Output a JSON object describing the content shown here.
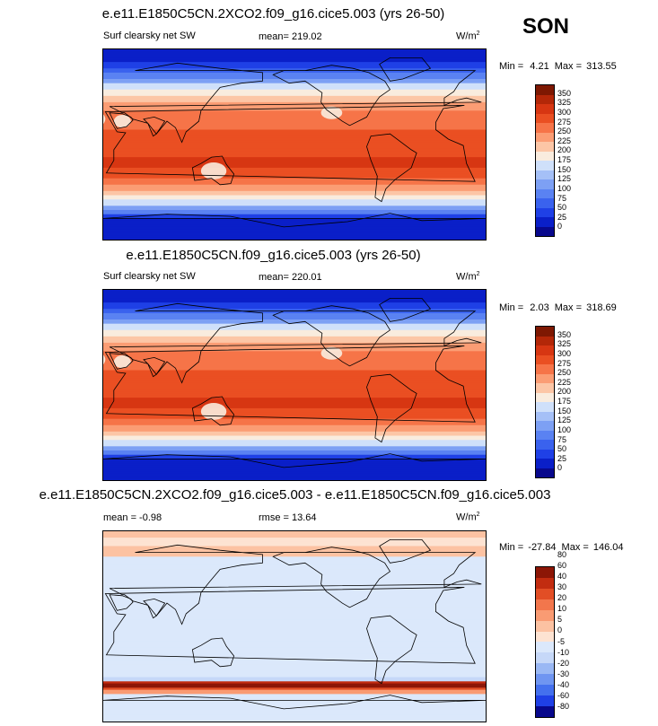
{
  "season": "SON",
  "colors": {
    "abs_scale": [
      "#08088c",
      "#0a1fc8",
      "#1f40e6",
      "#3a62ee",
      "#5a82f2",
      "#7da0f4",
      "#a5c0f7",
      "#cfe0fa",
      "#f9ecde",
      "#fcc6a6",
      "#fb9d74",
      "#f67448",
      "#ea4f22",
      "#d73612",
      "#b32708",
      "#7e1802"
    ],
    "diff_scale": [
      "#08088c",
      "#1f40e6",
      "#4470ee",
      "#6f95f1",
      "#9ab8f4",
      "#c6d8f8",
      "#dbe8fb",
      "#fde3d2",
      "#fcc2a2",
      "#f99b73",
      "#f2764c",
      "#e24e25",
      "#c22c10",
      "#8c1606"
    ],
    "coast": "#000000"
  },
  "chart_data": [
    {
      "type": "heatmap",
      "title": "e.e11.E1850C5CN.2XCO2.f09_g16.cice5.003 (yrs 26-50)",
      "left_label": "Surf clearsky net SW",
      "center_label": "mean= 219.02",
      "units": "W/m",
      "units_exp": "2",
      "min_label": "Min =",
      "min_value": "4.21",
      "max_label": "Max =",
      "max_value": "313.55",
      "levels": [
        "0",
        "25",
        "50",
        "75",
        "100",
        "125",
        "150",
        "175",
        "200",
        "225",
        "250",
        "275",
        "300",
        "325",
        "350"
      ],
      "field": "absolute"
    },
    {
      "type": "heatmap",
      "title": "e.e11.E1850C5CN.f09_g16.cice5.003 (yrs 26-50)",
      "left_label": "Surf clearsky net SW",
      "center_label": "mean= 220.01",
      "units": "W/m",
      "units_exp": "2",
      "min_label": "Min =",
      "min_value": "2.03",
      "max_label": "Max =",
      "max_value": "318.69",
      "levels": [
        "0",
        "25",
        "50",
        "75",
        "100",
        "125",
        "150",
        "175",
        "200",
        "225",
        "250",
        "275",
        "300",
        "325",
        "350"
      ],
      "field": "absolute"
    },
    {
      "type": "heatmap",
      "title": "e.e11.E1850C5CN.2XCO2.f09_g16.cice5.003 - e.e11.E1850C5CN.f09_g16.cice5.003",
      "left_label": "mean =  -0.98",
      "center_label": "rmse =  13.64",
      "units": "W/m",
      "units_exp": "2",
      "min_label": "Min =",
      "min_value": "-27.84",
      "max_label": "Max =",
      "max_value": "146.04",
      "levels": [
        "-80",
        "-60",
        "-40",
        "-30",
        "-20",
        "-10",
        "-5",
        "0",
        "5",
        "10",
        "20",
        "30",
        "40",
        "60",
        "80"
      ],
      "field": "difference"
    }
  ]
}
